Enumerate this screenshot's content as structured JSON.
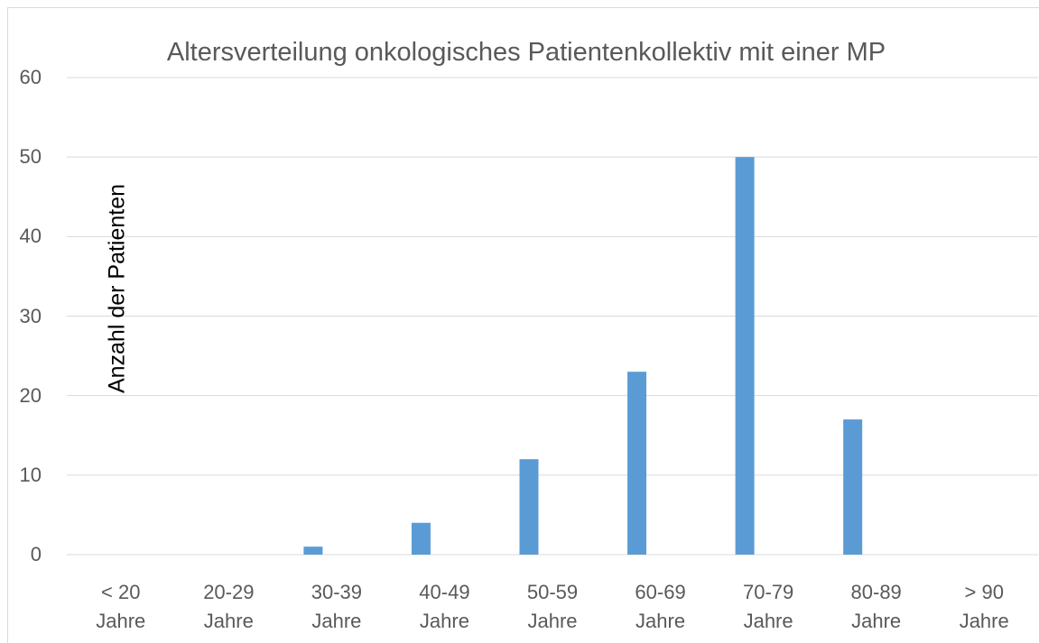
{
  "chart_data": {
    "type": "bar",
    "title": "Altersverteilung onkologisches  Patientenkollektiv mit einer MP",
    "y_label": "Anzahl der Patienten",
    "categories": [
      "< 20 Jahre",
      "20-29 Jahre",
      "30-39 Jahre",
      "40-49 Jahre",
      "50-59 Jahre",
      "60-69 Jahre",
      "70-79 Jahre",
      "80-89 Jahre",
      "> 90 Jahre"
    ],
    "values": [
      0,
      0,
      1,
      4,
      12,
      23,
      50,
      17,
      0
    ],
    "color": "#5b9bd5",
    "ylim": [
      0,
      60
    ],
    "yticks": [
      0,
      10,
      20,
      30,
      40,
      50,
      60
    ],
    "grid": true
  }
}
